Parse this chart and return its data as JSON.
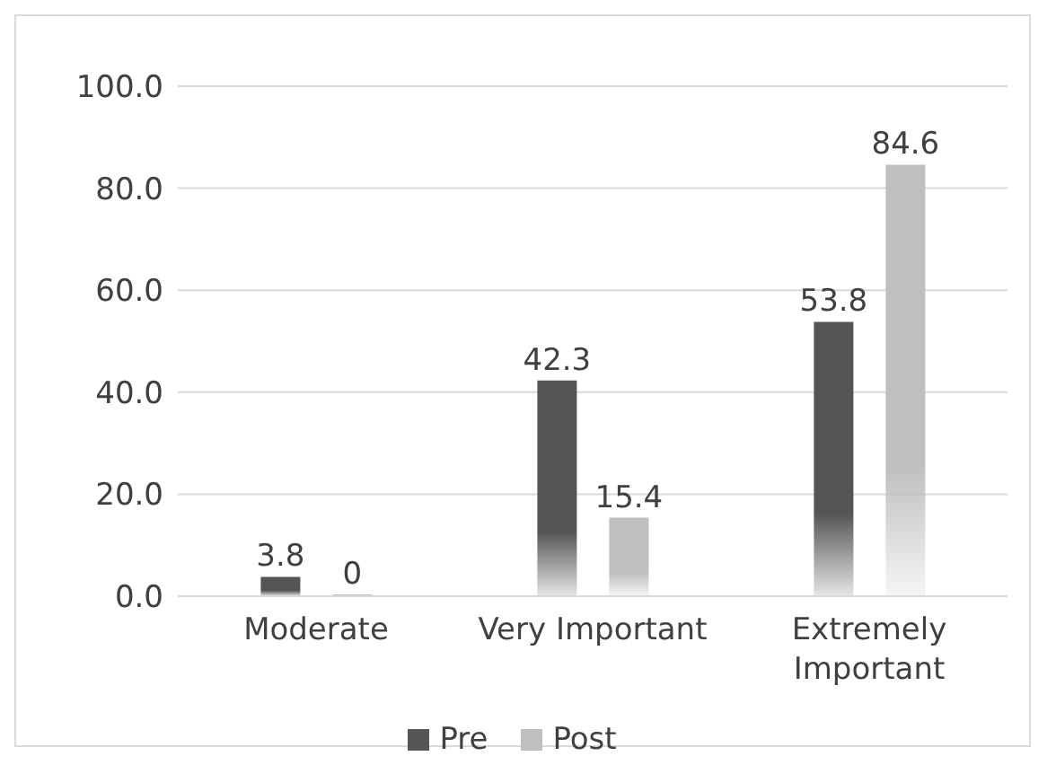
{
  "chart_data": {
    "type": "bar",
    "categories": [
      "Moderate",
      "Very Important",
      "Extremely Important"
    ],
    "series": [
      {
        "name": "Pre",
        "color": "#555555",
        "values": [
          3.8,
          42.3,
          53.8
        ]
      },
      {
        "name": "Post",
        "color": "#bfbfbf",
        "values": [
          0,
          15.4,
          84.6
        ]
      }
    ],
    "ylim": [
      0,
      100
    ],
    "yticks": [
      {
        "value": 0,
        "label": "0.0"
      },
      {
        "value": 20,
        "label": "20.0"
      },
      {
        "value": 40,
        "label": "40.0"
      },
      {
        "value": 60,
        "label": "60.0"
      },
      {
        "value": 80,
        "label": "80.0"
      },
      {
        "value": 100,
        "label": "100.0"
      }
    ],
    "grid": "y",
    "legend": "bottom",
    "data_labels": true
  }
}
